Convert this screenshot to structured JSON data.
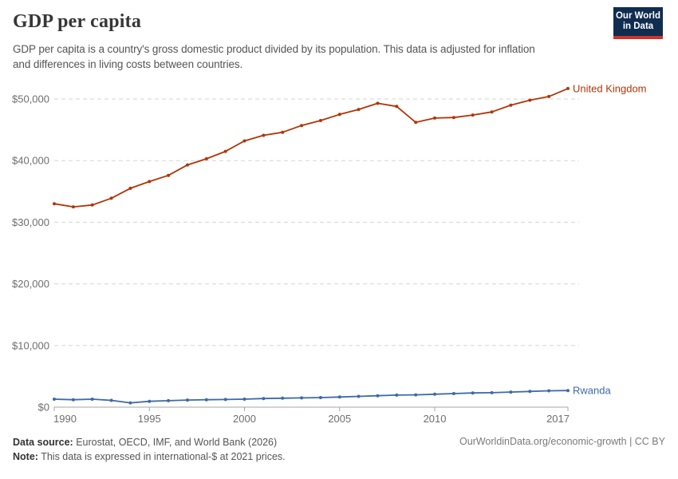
{
  "header": {
    "title": "GDP per capita",
    "subtitle_line1": "GDP per capita is a country's gross domestic product divided by its population. This data is adjusted for inflation",
    "subtitle_line2": "and differences in living costs between countries.",
    "logo": {
      "line1": "Our World",
      "line2": "in Data",
      "bg_color": "#102d50",
      "accent_color": "#d13328"
    }
  },
  "footer": {
    "source_label": "Data source:",
    "source_text": " Eurostat, OECD, IMF, and World Bank (2026)",
    "note_label": "Note:",
    "note_text": " This data is expressed in international-$ at 2021 prices.",
    "link_text": "OurWorldinData.org/economic-growth | CC BY"
  },
  "colors": {
    "united_kingdom": "#b13507",
    "rwanda": "#3d6aa8",
    "gridline": "#d5d5d5",
    "axis": "#a5a5a5",
    "tick_label": "#6e6e6e"
  },
  "chart_data": {
    "type": "line",
    "title": "GDP per capita",
    "xlabel": "",
    "ylabel": "",
    "x": [
      1990,
      1991,
      1992,
      1993,
      1994,
      1995,
      1996,
      1997,
      1998,
      1999,
      2000,
      2001,
      2002,
      2003,
      2004,
      2005,
      2006,
      2007,
      2008,
      2009,
      2010,
      2011,
      2012,
      2013,
      2014,
      2015,
      2016,
      2017
    ],
    "series": [
      {
        "name": "United Kingdom",
        "color": "#b13507",
        "values": [
          33000,
          32500,
          32800,
          33900,
          35500,
          36600,
          37600,
          39300,
          40300,
          41500,
          43200,
          44100,
          44600,
          45700,
          46500,
          47500,
          48300,
          49300,
          48800,
          46200,
          46900,
          47000,
          47400,
          47900,
          49000,
          49800,
          50400,
          51700
        ]
      },
      {
        "name": "Rwanda",
        "color": "#3d6aa8",
        "values": [
          1300,
          1200,
          1300,
          1100,
          700,
          950,
          1050,
          1150,
          1200,
          1250,
          1300,
          1400,
          1450,
          1500,
          1550,
          1650,
          1750,
          1850,
          1950,
          2000,
          2100,
          2200,
          2300,
          2350,
          2450,
          2550,
          2650,
          2700
        ]
      }
    ],
    "ylim": [
      0,
      52000
    ],
    "yticks": [
      0,
      10000,
      20000,
      30000,
      40000,
      50000
    ],
    "ytick_labels": [
      "$0",
      "$10,000",
      "$20,000",
      "$30,000",
      "$40,000",
      "$50,000"
    ],
    "xticks": [
      1990,
      1995,
      2000,
      2005,
      2010,
      2017
    ],
    "grid": "horizontal-dashed",
    "legend_position": "line-end-labels"
  }
}
